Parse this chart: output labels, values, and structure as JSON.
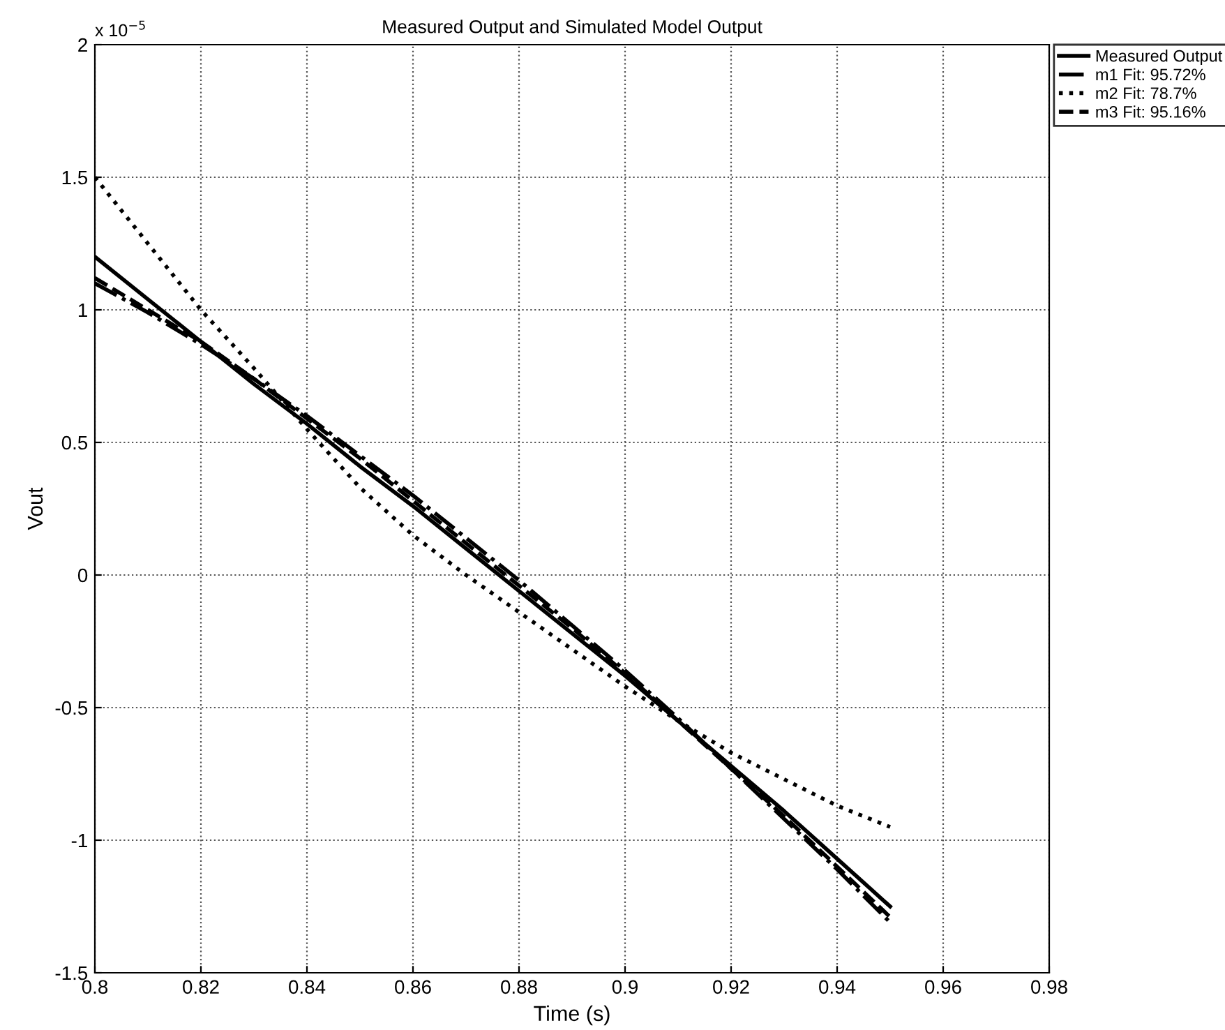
{
  "chart_data": {
    "type": "line",
    "title": "Measured Output and Simulated Model Output",
    "xlabel": "Time (s)",
    "ylabel": "Vout",
    "annotations": [
      "x 10$^{−5}$"
    ],
    "x": [
      0.8,
      0.81,
      0.82,
      0.83,
      0.84,
      0.85,
      0.86,
      0.87,
      0.88,
      0.89,
      0.9,
      0.91,
      0.92,
      0.93,
      0.94,
      0.95
    ],
    "series": [
      {
        "name": "Measured Output",
        "color": "#000000",
        "line_style": "solid",
        "values": [
          1.2,
          1.04,
          0.88,
          0.72,
          0.57,
          0.41,
          0.26,
          0.1,
          -0.06,
          -0.22,
          -0.38,
          -0.55,
          -0.72,
          -0.89,
          -1.07,
          -1.25
        ]
      },
      {
        "name": "m1 Fit: 95.72%",
        "color": "#000000",
        "line_style": "dashdot",
        "values": [
          1.1,
          0.99,
          0.87,
          0.74,
          0.6,
          0.45,
          0.3,
          0.14,
          -0.02,
          -0.19,
          -0.36,
          -0.54,
          -0.73,
          -0.92,
          -1.11,
          -1.31
        ]
      },
      {
        "name": "m2 Fit: 78.7%",
        "color": "#000000",
        "line_style": "dotted",
        "values": [
          1.5,
          1.25,
          1.0,
          0.78,
          0.55,
          0.33,
          0.15,
          0.0,
          -0.14,
          -0.28,
          -0.42,
          -0.55,
          -0.67,
          -0.77,
          -0.87,
          -0.95
        ]
      },
      {
        "name": "m3 Fit: 95.16%",
        "color": "#000000",
        "line_style": "dashed",
        "values": [
          1.12,
          1.0,
          0.88,
          0.74,
          0.59,
          0.44,
          0.28,
          0.12,
          -0.04,
          -0.2,
          -0.37,
          -0.55,
          -0.73,
          -0.91,
          -1.1,
          -1.29
        ]
      }
    ],
    "xlim": [
      0.8,
      0.98
    ],
    "xticks": [
      0.8,
      0.82,
      0.84,
      0.86,
      0.88,
      0.9,
      0.92,
      0.94,
      0.96,
      0.98
    ],
    "ylim": [
      -1.5,
      2
    ],
    "yticks": [
      -1.5,
      -1,
      -0.5,
      0,
      0.5,
      1,
      1.5,
      2
    ],
    "grid": true,
    "legend": "top right",
    "marker": "none"
  }
}
